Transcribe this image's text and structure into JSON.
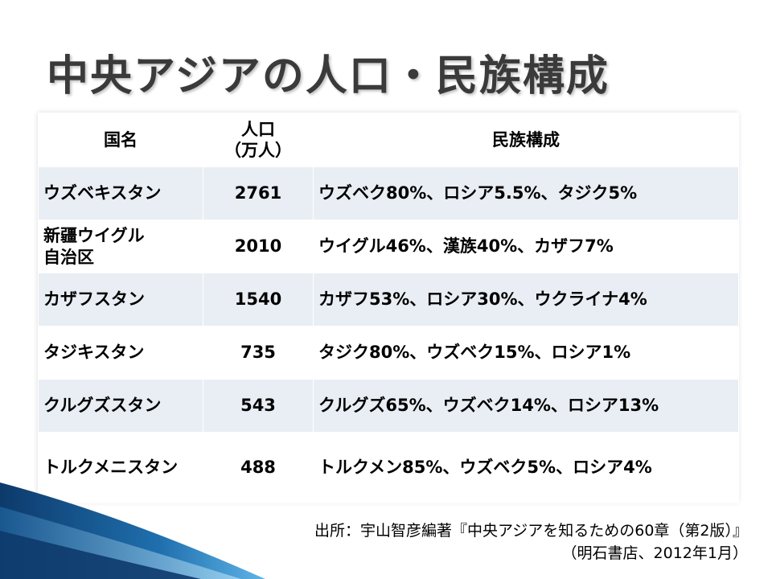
{
  "title": "中央アジアの人口・民族構成",
  "table": {
    "headers": {
      "country": "国名",
      "population_line1": "人口",
      "population_line2": "（万人）",
      "ethnic": "民族構成"
    },
    "rows": [
      {
        "country": "ウズベキスタン",
        "country_line2": "",
        "population": "2761",
        "ethnic": "ウズベク80%、ロシア5.5%、タジク5%"
      },
      {
        "country": "新疆ウイグル",
        "country_line2": "自治区",
        "population": "2010",
        "ethnic": "ウイグル46%、漢族40%、カザフ7%"
      },
      {
        "country": "カザフスタン",
        "country_line2": "",
        "population": "1540",
        "ethnic": "カザフ53%、ロシア30%、ウクライナ4%"
      },
      {
        "country": "タジキスタン",
        "country_line2": "",
        "population": "735",
        "ethnic": "タジク80%、ウズベク15%、ロシア1%"
      },
      {
        "country": "クルグズスタン",
        "country_line2": "",
        "population": "543",
        "ethnic": "クルグズ65%、ウズベク14%、ロシア13%"
      },
      {
        "country": "トルクメニスタン",
        "country_line2": "",
        "population": "488",
        "ethnic": "トルクメン85%、ウズベク5%、ロシア4%"
      }
    ]
  },
  "source": {
    "line1": "出所：宇山智彦編著『中央アジアを知るための60章（第2版）』",
    "line2": "（明石書店、2012年1月）"
  },
  "colors": {
    "title": "#3a3a3a",
    "row_band": "#e9eef4",
    "swoosh_dark": "#0d3a6b",
    "swoosh_light": "#4aa3d8"
  }
}
